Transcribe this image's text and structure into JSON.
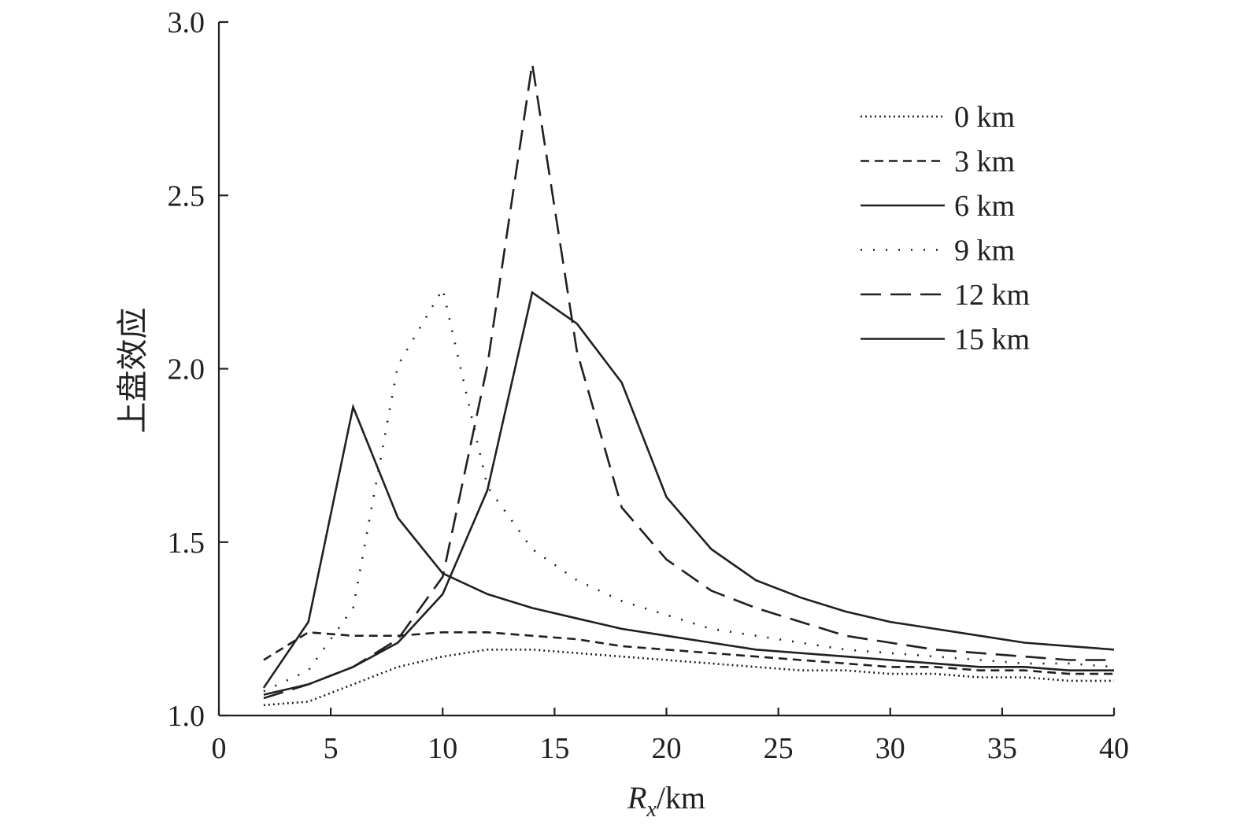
{
  "chart_data": {
    "type": "line",
    "title": "",
    "xlabel": "R",
    "xlabel_sub": "x",
    "xlabel_unit": "/km",
    "ylabel": "上盘效应",
    "xlim": [
      0,
      40
    ],
    "ylim": [
      1.0,
      3.0
    ],
    "xticks": [
      "0",
      "5",
      "10",
      "15",
      "20",
      "25",
      "30",
      "35",
      "40"
    ],
    "yticks": [
      "1.0",
      "1.5",
      "2.0",
      "2.5",
      "3.0"
    ],
    "grid": false,
    "legend_position": "top-right",
    "x": [
      2,
      4,
      6,
      8,
      10,
      12,
      14,
      16,
      18,
      20,
      22,
      24,
      26,
      28,
      30,
      32,
      34,
      36,
      38,
      40
    ],
    "series": [
      {
        "name": "0 km",
        "style": "fine-dotted",
        "values": [
          1.03,
          1.04,
          1.09,
          1.14,
          1.17,
          1.19,
          1.19,
          1.18,
          1.17,
          1.16,
          1.15,
          1.14,
          1.13,
          1.13,
          1.12,
          1.12,
          1.11,
          1.11,
          1.1,
          1.1
        ]
      },
      {
        "name": "3 km",
        "style": "short-dashed",
        "values": [
          1.16,
          1.24,
          1.23,
          1.23,
          1.24,
          1.24,
          1.23,
          1.22,
          1.2,
          1.19,
          1.18,
          1.17,
          1.16,
          1.15,
          1.14,
          1.14,
          1.13,
          1.13,
          1.12,
          1.12
        ]
      },
      {
        "name": "6 km",
        "style": "solid",
        "values": [
          1.08,
          1.27,
          1.89,
          1.57,
          1.41,
          1.35,
          1.31,
          1.28,
          1.25,
          1.23,
          1.21,
          1.19,
          1.18,
          1.17,
          1.16,
          1.15,
          1.14,
          1.14,
          1.13,
          1.13
        ]
      },
      {
        "name": "9 km",
        "style": "sparse-dotted",
        "values": [
          1.07,
          1.13,
          1.31,
          2.01,
          2.23,
          1.66,
          1.48,
          1.39,
          1.33,
          1.29,
          1.25,
          1.23,
          1.21,
          1.19,
          1.18,
          1.17,
          1.16,
          1.15,
          1.15,
          1.14
        ]
      },
      {
        "name": "12 km",
        "style": "long-dashed",
        "values": [
          1.05,
          1.09,
          1.14,
          1.22,
          1.4,
          2.01,
          2.88,
          2.05,
          1.6,
          1.45,
          1.36,
          1.31,
          1.27,
          1.23,
          1.21,
          1.19,
          1.18,
          1.17,
          1.16,
          1.16
        ]
      },
      {
        "name": "15 km",
        "style": "solid",
        "values": [
          1.06,
          1.09,
          1.14,
          1.21,
          1.35,
          1.65,
          2.22,
          2.13,
          1.96,
          1.63,
          1.48,
          1.39,
          1.34,
          1.3,
          1.27,
          1.25,
          1.23,
          1.21,
          1.2,
          1.19
        ]
      }
    ]
  }
}
